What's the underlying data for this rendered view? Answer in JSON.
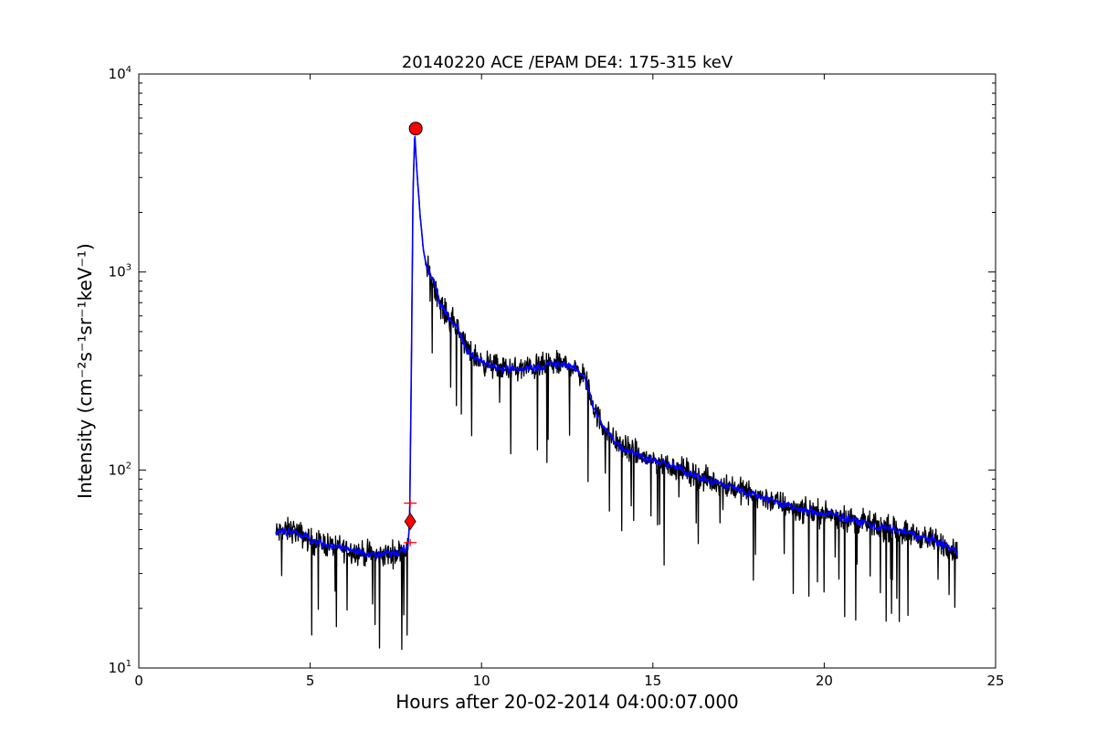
{
  "chart_data": {
    "type": "line",
    "title": "20140220 ACE /EPAM DE4: 175-315 keV",
    "xlabel": "Hours after 20-02-2014 04:00:07.000",
    "ylabel": "Intensity (cm⁻²s⁻¹sr⁻¹keV⁻¹)",
    "yscale": "log",
    "xlim": [
      0,
      25
    ],
    "ylim": [
      10,
      10000
    ],
    "x_ticks": [
      "0",
      "5",
      "10",
      "15",
      "20",
      "25"
    ],
    "y_ticks": [
      {
        "base": "10",
        "exp": "1"
      },
      {
        "base": "10",
        "exp": "2"
      },
      {
        "base": "10",
        "exp": "3"
      },
      {
        "base": "10",
        "exp": "4"
      }
    ],
    "grid": false,
    "series": [
      {
        "color": "#000000",
        "style": "raw noisy trace",
        "x": [
          4.0,
          4.5,
          5.0,
          5.5,
          6.0,
          6.5,
          7.0,
          7.5,
          7.85,
          7.9,
          7.95,
          8.0,
          8.05,
          8.1,
          8.2,
          8.3,
          8.4,
          8.6,
          8.8,
          9.0,
          9.3,
          9.6,
          10.0,
          10.5,
          11.0,
          11.5,
          12.0,
          12.5,
          13.0,
          13.3,
          13.6,
          14.0,
          14.5,
          15.0,
          15.5,
          16.0,
          16.5,
          17.0,
          17.5,
          18.0,
          18.5,
          19.0,
          19.5,
          20.0,
          20.5,
          21.0,
          21.5,
          22.0,
          22.5,
          23.0,
          23.5,
          23.9
        ],
        "y": [
          48,
          50,
          44,
          42,
          40,
          38,
          37,
          38,
          40,
          55,
          300,
          2500,
          5000,
          3500,
          2000,
          1300,
          1050,
          900,
          680,
          600,
          520,
          400,
          350,
          330,
          320,
          330,
          340,
          340,
          300,
          200,
          160,
          135,
          120,
          112,
          105,
          98,
          90,
          85,
          80,
          75,
          70,
          65,
          62,
          60,
          58,
          55,
          52,
          50,
          48,
          45,
          42,
          38
        ]
      },
      {
        "color": "#0000ff",
        "style": "smoothed trace",
        "x": [
          4.0,
          4.5,
          5.0,
          5.5,
          6.0,
          6.5,
          7.0,
          7.5,
          7.85,
          7.9,
          7.95,
          8.0,
          8.05,
          8.1,
          8.2,
          8.3,
          8.4,
          8.6,
          8.8,
          9.0,
          9.3,
          9.6,
          10.0,
          10.5,
          11.0,
          11.5,
          12.0,
          12.5,
          13.0,
          13.3,
          13.6,
          14.0,
          14.5,
          15.0,
          15.5,
          16.0,
          16.5,
          17.0,
          17.5,
          18.0,
          18.5,
          19.0,
          19.5,
          20.0,
          20.5,
          21.0,
          21.5,
          22.0,
          22.5,
          23.0,
          23.5,
          23.9
        ],
        "y": [
          48,
          50,
          44,
          42,
          40,
          38,
          37,
          38,
          40,
          55,
          300,
          2500,
          5000,
          3500,
          2000,
          1300,
          1050,
          900,
          680,
          600,
          520,
          400,
          350,
          330,
          320,
          330,
          340,
          340,
          300,
          200,
          160,
          135,
          120,
          112,
          105,
          98,
          90,
          85,
          80,
          75,
          70,
          65,
          62,
          60,
          58,
          55,
          52,
          50,
          48,
          45,
          42,
          38
        ]
      }
    ],
    "markers": [
      {
        "shape": "circle",
        "color": "#ff0000",
        "x": 8.08,
        "y": 5300
      },
      {
        "shape": "diamond",
        "color": "#ff0000",
        "x": 7.92,
        "y": 55
      },
      {
        "shape": "plus",
        "color": "#ff0000",
        "x": 7.92,
        "y": 68
      },
      {
        "shape": "plus",
        "color": "#ff0000",
        "x": 7.92,
        "y": 43
      }
    ]
  }
}
